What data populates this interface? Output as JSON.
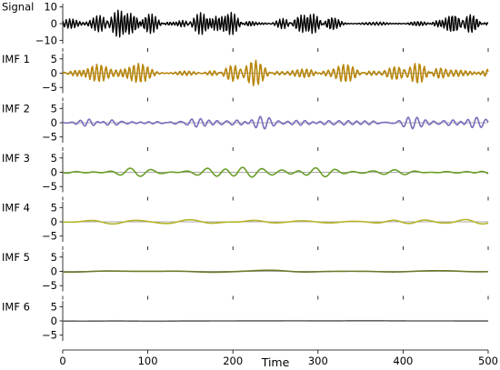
{
  "chart_data": {
    "type": "line",
    "title": "",
    "xlabel": "Time",
    "xlim": [
      0,
      500
    ],
    "x_ticks": [
      "0",
      "100",
      "200",
      "300",
      "400",
      "500"
    ],
    "grid": false,
    "legend": "none",
    "panels": [
      {
        "name": "Signal",
        "color": "#000000",
        "ylim": [
          -12,
          12
        ],
        "y_ticks": [
          "10",
          "0",
          "−10"
        ],
        "y_tick_values": [
          10,
          0,
          -10
        ],
        "amplitude": 8,
        "cycles": 120,
        "seed": 1
      },
      {
        "name": "IMF 1",
        "color": "#b8860b",
        "color2": "#cc6600",
        "ylim": [
          -7,
          7
        ],
        "y_ticks": [
          "5",
          "0",
          "−5"
        ],
        "y_tick_values": [
          5,
          0,
          -5
        ],
        "amplitude": 4.5,
        "cycles": 90,
        "seed": 2
      },
      {
        "name": "IMF 2",
        "color": "#7b6bbd",
        "ylim": [
          -7,
          7
        ],
        "y_ticks": [
          "5",
          "0",
          "−5"
        ],
        "y_tick_values": [
          5,
          0,
          -5
        ],
        "amplitude": 2.2,
        "cycles": 45,
        "seed": 3
      },
      {
        "name": "IMF 3",
        "color": "#6a9e2a",
        "ylim": [
          -7,
          7
        ],
        "y_ticks": [
          "5",
          "0",
          "−5"
        ],
        "y_tick_values": [
          5,
          0,
          -5
        ],
        "amplitude": 1.7,
        "cycles": 22,
        "seed": 4
      },
      {
        "name": "IMF 4",
        "color": "#b5b52a",
        "ylim": [
          -7,
          7
        ],
        "y_ticks": [
          "5",
          "0",
          "−5"
        ],
        "y_tick_values": [
          5,
          0,
          -5
        ],
        "amplitude": 0.8,
        "cycles": 10,
        "seed": 5
      },
      {
        "name": "IMF 5",
        "color": "#6b7a2a",
        "ylim": [
          -7,
          7
        ],
        "y_ticks": [
          "5",
          "0",
          "−5"
        ],
        "y_tick_values": [
          5,
          0,
          -5
        ],
        "amplitude": 0.4,
        "cycles": 4,
        "seed": 6
      },
      {
        "name": "IMF 6",
        "color": "#666666",
        "ylim": [
          -7,
          7
        ],
        "y_ticks": [
          "5",
          "0",
          "−5"
        ],
        "y_tick_values": [
          5,
          0,
          -5
        ],
        "amplitude": 0.1,
        "cycles": 1,
        "seed": 7
      }
    ]
  }
}
